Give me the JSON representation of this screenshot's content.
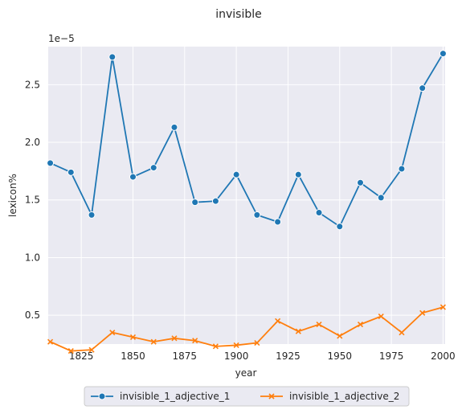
{
  "chart_data": {
    "type": "line",
    "title": "invisible",
    "xlabel": "year",
    "ylabel": "lexicon%",
    "y_scale_label": "1e−5",
    "xlim": [
      1809,
      2001
    ],
    "ylim": [
      0.25,
      2.83
    ],
    "x_ticks": [
      1825,
      1850,
      1875,
      1900,
      1925,
      1950,
      1975,
      2000
    ],
    "x_tick_labels": [
      "1825",
      "1850",
      "1875",
      "1900",
      "1925",
      "1950",
      "1975",
      "2000"
    ],
    "y_ticks": [
      0.5,
      1.0,
      1.5,
      2.0,
      2.5
    ],
    "y_tick_labels": [
      "0.5",
      "1.0",
      "1.5",
      "2.0",
      "2.5"
    ],
    "x": [
      1810,
      1820,
      1830,
      1840,
      1850,
      1860,
      1870,
      1880,
      1890,
      1900,
      1910,
      1920,
      1930,
      1940,
      1950,
      1960,
      1970,
      1980,
      1990,
      2000
    ],
    "grid": true,
    "legend_position": "bottom-center",
    "series": [
      {
        "name": "invisible_1_adjective_1",
        "color": "#1f77b4",
        "marker": "circle",
        "values": [
          1.82,
          1.74,
          1.37,
          2.74,
          1.7,
          1.78,
          2.13,
          1.48,
          1.49,
          1.72,
          1.37,
          1.31,
          1.72,
          1.39,
          1.27,
          1.65,
          1.52,
          1.77,
          2.47,
          2.77
        ]
      },
      {
        "name": "invisible_1_adjective_2",
        "color": "#ff7f0e",
        "marker": "x",
        "values": [
          0.27,
          0.19,
          0.2,
          0.35,
          0.31,
          0.27,
          0.3,
          0.28,
          0.23,
          0.24,
          0.26,
          0.45,
          0.36,
          0.42,
          0.32,
          0.42,
          0.49,
          0.35,
          0.52,
          0.57
        ]
      }
    ]
  }
}
